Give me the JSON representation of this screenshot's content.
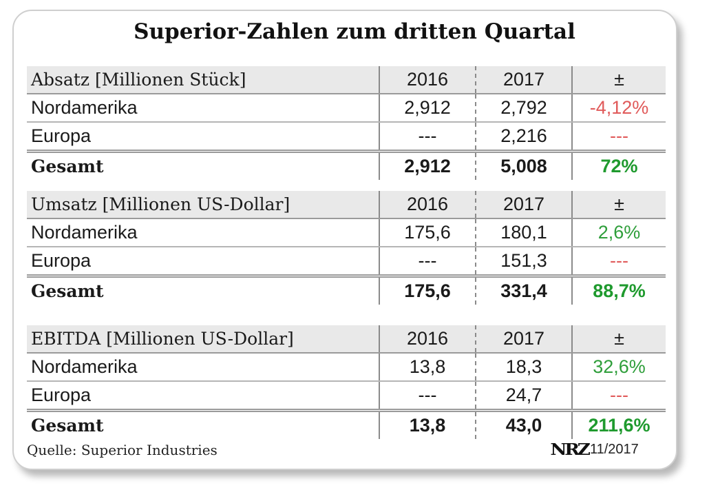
{
  "title": "Superior-Zahlen zum dritten Quartal",
  "chart_data": {
    "type": "table",
    "title": "Superior-Zahlen zum dritten Quartal",
    "columns": [
      "2016",
      "2017",
      "±"
    ],
    "sections": [
      {
        "header": "Absatz [Millionen Stück]",
        "rows": [
          {
            "label": "Nordamerika",
            "v2016": "2,912",
            "v2017": "2,792",
            "change": "-4,12%"
          },
          {
            "label": "Europa",
            "v2016": "---",
            "v2017": "2,216",
            "change": "---"
          },
          {
            "label": "Gesamt",
            "v2016": "2,912",
            "v2017": "5,008",
            "change": "72%"
          }
        ]
      },
      {
        "header": "Umsatz [Millionen US-Dollar]",
        "rows": [
          {
            "label": "Nordamerika",
            "v2016": "175,6",
            "v2017": "180,1",
            "change": "2,6%"
          },
          {
            "label": "Europa",
            "v2016": "---",
            "v2017": "151,3",
            "change": "---"
          },
          {
            "label": "Gesamt",
            "v2016": "175,6",
            "v2017": "331,4",
            "change": "88,7%"
          }
        ]
      },
      {
        "header": "EBITDA [Millionen US-Dollar]",
        "rows": [
          {
            "label": "Nordamerika",
            "v2016": "13,8",
            "v2017": "18,3",
            "change": "32,6%"
          },
          {
            "label": "Europa",
            "v2016": "---",
            "v2017": "24,7",
            "change": "---"
          },
          {
            "label": "Gesamt",
            "v2016": "13,8",
            "v2017": "43,0",
            "change": "211,6%"
          }
        ]
      }
    ]
  },
  "footer": {
    "source": "Quelle: Superior Industries",
    "logo": "NRZ",
    "date": "11/2017"
  },
  "colors": {
    "negative": "#e05a5a",
    "positive": "#2e9e3a",
    "header_bg": "#e9e9e9"
  }
}
